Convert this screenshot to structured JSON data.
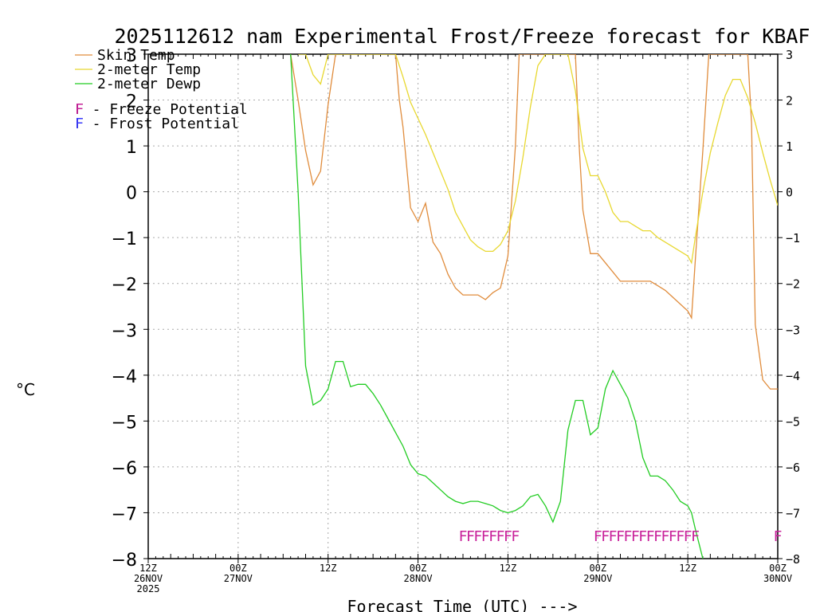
{
  "chart_data": {
    "type": "line",
    "title": "2025112612 nam Experimental Frost/Freeze forecast for KBAF",
    "xlabel": "Forecast Time (UTC) --->",
    "ylabel": "°C",
    "ylim": [
      -8,
      3
    ],
    "yticks": [
      -8,
      -7,
      -6,
      -5,
      -4,
      -3,
      -2,
      -1,
      0,
      1,
      2,
      3
    ],
    "xlim": [
      0,
      84
    ],
    "grid": true,
    "xticks": [
      {
        "h": 0,
        "lines": [
          "12Z",
          "26NOV",
          "2025"
        ]
      },
      {
        "h": 12,
        "lines": [
          "00Z",
          "27NOV"
        ]
      },
      {
        "h": 24,
        "lines": [
          "12Z"
        ]
      },
      {
        "h": 36,
        "lines": [
          "00Z",
          "28NOV"
        ]
      },
      {
        "h": 48,
        "lines": [
          "12Z"
        ]
      },
      {
        "h": 60,
        "lines": [
          "00Z",
          "29NOV"
        ]
      },
      {
        "h": 72,
        "lines": [
          "12Z"
        ]
      },
      {
        "h": 84,
        "lines": [
          "00Z",
          "30NOV"
        ]
      }
    ],
    "series": [
      {
        "name": "Skin Temp",
        "color": "#e08c3c",
        "points": [
          [
            19,
            3
          ],
          [
            20,
            2
          ],
          [
            21,
            0.9
          ],
          [
            22,
            0.15
          ],
          [
            23,
            0.45
          ],
          [
            24,
            1.9
          ],
          [
            25,
            3
          ],
          [
            33,
            3
          ],
          [
            33.5,
            2
          ],
          [
            34,
            1.4
          ],
          [
            35,
            -0.35
          ],
          [
            36,
            -0.65
          ],
          [
            37,
            -0.25
          ],
          [
            38,
            -1.1
          ],
          [
            39,
            -1.35
          ],
          [
            40,
            -1.8
          ],
          [
            41,
            -2.1
          ],
          [
            42,
            -2.25
          ],
          [
            43,
            -2.25
          ],
          [
            44,
            -2.25
          ],
          [
            45,
            -2.35
          ],
          [
            46,
            -2.2
          ],
          [
            47,
            -2.1
          ],
          [
            48,
            -1.4
          ],
          [
            49,
            1.0
          ],
          [
            49.5,
            3
          ],
          [
            57,
            3
          ],
          [
            57.5,
            1.0
          ],
          [
            58,
            -0.4
          ],
          [
            59,
            -1.35
          ],
          [
            60,
            -1.35
          ],
          [
            61,
            -1.55
          ],
          [
            62,
            -1.75
          ],
          [
            63,
            -1.95
          ],
          [
            64,
            -1.95
          ],
          [
            65,
            -1.95
          ],
          [
            66,
            -1.95
          ],
          [
            67,
            -1.95
          ],
          [
            68,
            -2.05
          ],
          [
            69,
            -2.15
          ],
          [
            70,
            -2.3
          ],
          [
            71,
            -2.45
          ],
          [
            72,
            -2.6
          ],
          [
            72.5,
            -2.75
          ],
          [
            73,
            -1.5
          ],
          [
            74,
            0.9
          ],
          [
            74.8,
            3
          ],
          [
            80,
            3
          ],
          [
            80.5,
            1.5
          ],
          [
            81,
            -2.9
          ],
          [
            82,
            -4.1
          ],
          [
            83,
            -4.3
          ],
          [
            84,
            -4.3
          ]
        ]
      },
      {
        "name": "2-meter Temp",
        "color": "#e8d830",
        "points": [
          [
            20,
            3
          ],
          [
            21,
            3
          ],
          [
            22,
            2.55
          ],
          [
            23,
            2.35
          ],
          [
            24,
            3
          ],
          [
            33,
            3
          ],
          [
            34,
            2.5
          ],
          [
            35,
            1.95
          ],
          [
            36,
            1.6
          ],
          [
            37,
            1.25
          ],
          [
            38,
            0.85
          ],
          [
            39,
            0.45
          ],
          [
            40,
            0.05
          ],
          [
            41,
            -0.45
          ],
          [
            42,
            -0.75
          ],
          [
            43,
            -1.05
          ],
          [
            44,
            -1.2
          ],
          [
            45,
            -1.3
          ],
          [
            46,
            -1.3
          ],
          [
            47,
            -1.15
          ],
          [
            48,
            -0.85
          ],
          [
            49,
            -0.2
          ],
          [
            50,
            0.75
          ],
          [
            51,
            1.85
          ],
          [
            52,
            2.75
          ],
          [
            53,
            3
          ],
          [
            56,
            3
          ],
          [
            57,
            2.2
          ],
          [
            58,
            0.95
          ],
          [
            59,
            0.35
          ],
          [
            60,
            0.35
          ],
          [
            61,
            0.0
          ],
          [
            62,
            -0.45
          ],
          [
            63,
            -0.65
          ],
          [
            64,
            -0.65
          ],
          [
            65,
            -0.75
          ],
          [
            66,
            -0.85
          ],
          [
            67,
            -0.85
          ],
          [
            68,
            -1.0
          ],
          [
            69,
            -1.1
          ],
          [
            70,
            -1.2
          ],
          [
            71,
            -1.3
          ],
          [
            72,
            -1.4
          ],
          [
            72.5,
            -1.55
          ],
          [
            73,
            -1.0
          ],
          [
            74,
            0.0
          ],
          [
            75,
            0.85
          ],
          [
            76,
            1.5
          ],
          [
            77,
            2.1
          ],
          [
            78,
            2.45
          ],
          [
            79,
            2.45
          ],
          [
            80,
            2.05
          ],
          [
            81,
            1.5
          ],
          [
            82,
            0.85
          ],
          [
            83,
            0.25
          ],
          [
            84,
            -0.3
          ]
        ]
      },
      {
        "name": "2-meter Dewp",
        "color": "#22cc22",
        "points": [
          [
            19,
            3
          ],
          [
            20,
            0
          ],
          [
            21,
            -3.8
          ],
          [
            22,
            -4.65
          ],
          [
            23,
            -4.55
          ],
          [
            24,
            -4.3
          ],
          [
            25,
            -3.7
          ],
          [
            26,
            -3.7
          ],
          [
            27,
            -4.25
          ],
          [
            28,
            -4.2
          ],
          [
            29,
            -4.2
          ],
          [
            30,
            -4.4
          ],
          [
            31,
            -4.65
          ],
          [
            32,
            -4.95
          ],
          [
            33,
            -5.25
          ],
          [
            34,
            -5.55
          ],
          [
            35,
            -5.95
          ],
          [
            36,
            -6.15
          ],
          [
            37,
            -6.2
          ],
          [
            38,
            -6.35
          ],
          [
            39,
            -6.5
          ],
          [
            40,
            -6.65
          ],
          [
            41,
            -6.75
          ],
          [
            42,
            -6.8
          ],
          [
            43,
            -6.75
          ],
          [
            44,
            -6.75
          ],
          [
            45,
            -6.8
          ],
          [
            46,
            -6.85
          ],
          [
            47,
            -6.95
          ],
          [
            48,
            -7.0
          ],
          [
            49,
            -6.95
          ],
          [
            50,
            -6.85
          ],
          [
            51,
            -6.65
          ],
          [
            52,
            -6.6
          ],
          [
            53,
            -6.85
          ],
          [
            54,
            -7.2
          ],
          [
            55,
            -6.75
          ],
          [
            56,
            -5.2
          ],
          [
            57,
            -4.55
          ],
          [
            58,
            -4.55
          ],
          [
            59,
            -5.3
          ],
          [
            60,
            -5.15
          ],
          [
            61,
            -4.3
          ],
          [
            62,
            -3.9
          ],
          [
            63,
            -4.2
          ],
          [
            64,
            -4.5
          ],
          [
            65,
            -5.0
          ],
          [
            66,
            -5.8
          ],
          [
            67,
            -6.2
          ],
          [
            68,
            -6.2
          ],
          [
            69,
            -6.3
          ],
          [
            70,
            -6.5
          ],
          [
            71,
            -6.75
          ],
          [
            72,
            -6.85
          ],
          [
            72.5,
            -7.0
          ],
          [
            73,
            -7.35
          ],
          [
            74,
            -8
          ]
        ]
      }
    ],
    "freeze_marks": {
      "label": "F",
      "color": "#c8209a",
      "value": -7.5,
      "hours": [
        42,
        43,
        44,
        45,
        46,
        47,
        48,
        49,
        60,
        61,
        62,
        63,
        64,
        65,
        66,
        67,
        68,
        69,
        70,
        71,
        72,
        73,
        84
      ]
    },
    "legend": [
      {
        "label": "Skin Temp",
        "color": "#e08c3c",
        "kind": "line"
      },
      {
        "label": "2-meter Temp",
        "color": "#e8d830",
        "kind": "line"
      },
      {
        "label": "2-meter Dewp",
        "color": "#22cc22",
        "kind": "line"
      },
      {
        "label": "F - Freeze Potential",
        "color": "#c8209a",
        "kind": "text"
      },
      {
        "label": "F - Frost Potential",
        "color": "#3a3aff",
        "kind": "text"
      }
    ],
    "legend_position": "top-left"
  }
}
